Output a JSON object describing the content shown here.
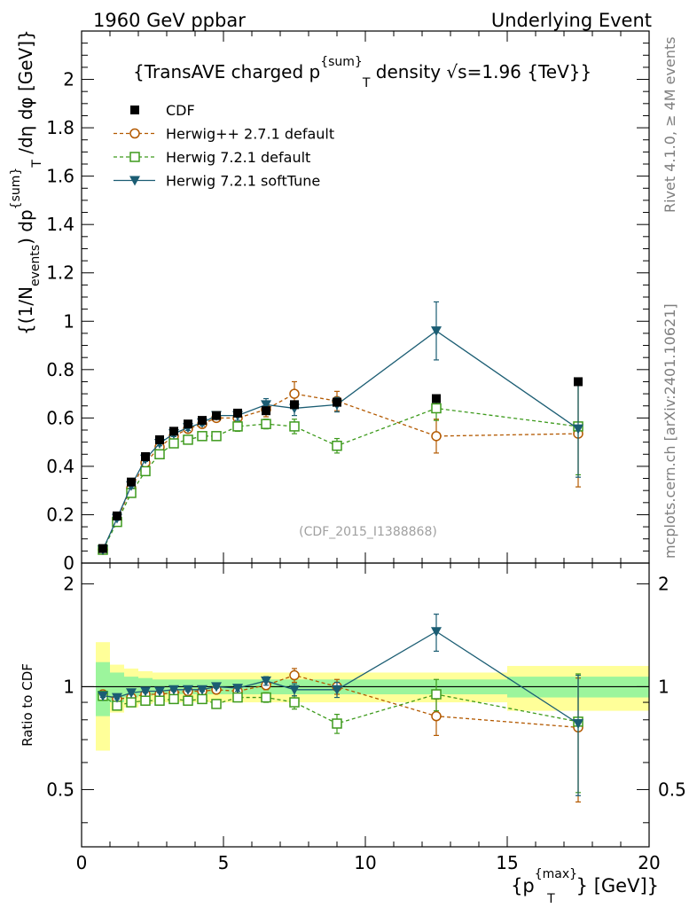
{
  "header": {
    "left": "1960 GeV ppbar",
    "right": "Underlying Event"
  },
  "side_labels": {
    "rivet": "Rivet 4.1.0, ≥ 4M events",
    "mcplots": "mcplots.cern.ch [arXiv:2401.10621]"
  },
  "colors": {
    "cdf": "#000000",
    "herwigpp": "#b35900",
    "herwig_default": "#3d9a1c",
    "herwig_soft": "#1b5d73",
    "band_inner": "#9cf59c",
    "band_outer": "#ffff99"
  },
  "chart_data": [
    {
      "panel": "main",
      "type": "line",
      "title": "{TransAVE charged p_T^{sum} density √s=1.96 {TeV}}",
      "title_parts": {
        "pre": "{TransAVE charged p",
        "sup": "{sum}",
        "sub": "T",
        "post": " density √s=1.96 {TeV}}"
      },
      "ylabel": "{(1/N_events) dp_T^{sum} /dη dφ [GeV]}",
      "ylabel_parts": {
        "a": "{(1/N",
        "b": "events",
        "c": ") dp",
        "d": "{sum}",
        "e": "T",
        "f": " /dη  dφ [GeV]}"
      },
      "xlim": [
        0,
        20
      ],
      "ylim": [
        0,
        2.2
      ],
      "yticks": [
        0,
        0.2,
        0.4,
        0.6,
        0.8,
        1,
        1.2,
        1.4,
        1.6,
        1.8,
        2
      ],
      "ytick_labels": [
        "0",
        "0.2",
        "0.4",
        "0.6",
        "0.8",
        "1",
        "1.2",
        "1.4",
        "1.6",
        "1.8",
        "2"
      ],
      "watermark": "(CDF_2015_I1388868)",
      "legend_position": "top-left",
      "series": [
        {
          "name": "CDF",
          "key": "cdf",
          "style": "data",
          "x": [
            0.75,
            1.25,
            1.75,
            2.25,
            2.75,
            3.25,
            3.75,
            4.25,
            4.75,
            5.5,
            6.5,
            7.5,
            9,
            12.5,
            17.5
          ],
          "y": [
            0.06,
            0.195,
            0.335,
            0.44,
            0.51,
            0.545,
            0.575,
            0.59,
            0.61,
            0.62,
            0.63,
            0.655,
            0.665,
            0.68,
            0.75
          ],
          "err": [
            0,
            0,
            0,
            0,
            0,
            0,
            0,
            0,
            0,
            0,
            0,
            0,
            0,
            0,
            0
          ]
        },
        {
          "name": "Herwig++ 2.7.1 default",
          "key": "herwigpp",
          "style": "circle-dashed",
          "x": [
            0.75,
            1.25,
            1.75,
            2.25,
            2.75,
            3.25,
            3.75,
            4.25,
            4.75,
            5.5,
            6.5,
            7.5,
            9,
            12.5,
            17.5
          ],
          "y": [
            0.055,
            0.18,
            0.31,
            0.415,
            0.48,
            0.525,
            0.555,
            0.575,
            0.6,
            0.6,
            0.635,
            0.7,
            0.67,
            0.525,
            0.535
          ],
          "err": [
            0.005,
            0.008,
            0.01,
            0.01,
            0.012,
            0.012,
            0.012,
            0.015,
            0.015,
            0.02,
            0.03,
            0.05,
            0.04,
            0.07,
            0.22
          ]
        },
        {
          "name": "Herwig 7.2.1 default",
          "key": "herwig_default",
          "style": "square-dashed",
          "x": [
            0.75,
            1.25,
            1.75,
            2.25,
            2.75,
            3.25,
            3.75,
            4.25,
            4.75,
            5.5,
            6.5,
            7.5,
            9,
            12.5,
            17.5
          ],
          "y": [
            0.055,
            0.17,
            0.29,
            0.38,
            0.45,
            0.495,
            0.51,
            0.525,
            0.525,
            0.565,
            0.575,
            0.565,
            0.485,
            0.64,
            0.565
          ],
          "err": [
            0.005,
            0.008,
            0.01,
            0.01,
            0.01,
            0.012,
            0.012,
            0.012,
            0.012,
            0.02,
            0.02,
            0.03,
            0.03,
            0.05,
            0.2
          ]
        },
        {
          "name": "Herwig 7.2.1 softTune",
          "key": "herwig_soft",
          "style": "triangle-solid",
          "x": [
            0.75,
            1.25,
            1.75,
            2.25,
            2.75,
            3.25,
            3.75,
            4.25,
            4.75,
            5.5,
            6.5,
            7.5,
            9,
            12.5,
            17.5
          ],
          "y": [
            0.055,
            0.185,
            0.32,
            0.43,
            0.495,
            0.535,
            0.56,
            0.58,
            0.61,
            0.61,
            0.655,
            0.64,
            0.655,
            0.96,
            0.555
          ],
          "err": [
            0.005,
            0.008,
            0.01,
            0.01,
            0.01,
            0.012,
            0.012,
            0.012,
            0.012,
            0.02,
            0.025,
            0.03,
            0.03,
            0.12,
            0.2
          ]
        }
      ]
    },
    {
      "panel": "ratio",
      "type": "line",
      "ylabel": "Ratio to CDF",
      "xlabel": "{p_T^{max}} [GeV]}",
      "xlabel_parts": {
        "a": "{p",
        "b": "{max}",
        "c": "T",
        "d": "} [GeV]}"
      },
      "xlim": [
        0,
        20
      ],
      "ylim": [
        0.34,
        2.3
      ],
      "yscale": "log",
      "yticks": [
        0.5,
        1,
        2
      ],
      "ytick_labels": [
        "0.5",
        "1",
        "2"
      ],
      "xticks": [
        0,
        5,
        10,
        15,
        20
      ],
      "xtick_labels": [
        "0",
        "5",
        "10",
        "15",
        "20"
      ],
      "reference": 1,
      "bands": {
        "edges": [
          0.5,
          1,
          1.5,
          2,
          2.5,
          3,
          3.5,
          4,
          4.5,
          5,
          6,
          7,
          8,
          10,
          15,
          20
        ],
        "inner": [
          0.18,
          0.1,
          0.07,
          0.06,
          0.05,
          0.05,
          0.05,
          0.05,
          0.05,
          0.05,
          0.05,
          0.05,
          0.05,
          0.05,
          0.07
        ],
        "outer": [
          0.35,
          0.16,
          0.13,
          0.11,
          0.1,
          0.1,
          0.1,
          0.1,
          0.1,
          0.1,
          0.1,
          0.1,
          0.1,
          0.1,
          0.15
        ]
      },
      "series": [
        {
          "name": "Herwig++ 2.7.1 default",
          "key": "herwigpp",
          "style": "circle-dashed",
          "x": [
            0.75,
            1.25,
            1.75,
            2.25,
            2.75,
            3.25,
            3.75,
            4.25,
            4.75,
            5.5,
            6.5,
            7.5,
            9,
            12.5,
            17.5
          ],
          "y": [
            0.95,
            0.92,
            0.93,
            0.95,
            0.95,
            0.96,
            0.97,
            0.97,
            0.98,
            0.97,
            1.01,
            1.08,
            1.0,
            0.82,
            0.76
          ],
          "err": [
            0.01,
            0.01,
            0.01,
            0.01,
            0.01,
            0.01,
            0.01,
            0.01,
            0.01,
            0.02,
            0.03,
            0.05,
            0.05,
            0.1,
            0.3
          ]
        },
        {
          "name": "Herwig 7.2.1 default",
          "key": "herwig_default",
          "style": "square-dashed",
          "x": [
            0.75,
            1.25,
            1.75,
            2.25,
            2.75,
            3.25,
            3.75,
            4.25,
            4.75,
            5.5,
            6.5,
            7.5,
            9,
            12.5,
            17.5
          ],
          "y": [
            0.94,
            0.88,
            0.9,
            0.91,
            0.91,
            0.92,
            0.91,
            0.92,
            0.89,
            0.93,
            0.93,
            0.9,
            0.78,
            0.95,
            0.79
          ],
          "err": [
            0.01,
            0.01,
            0.01,
            0.01,
            0.01,
            0.01,
            0.01,
            0.01,
            0.01,
            0.02,
            0.03,
            0.04,
            0.05,
            0.1,
            0.3
          ]
        },
        {
          "name": "Herwig 7.2.1 softTune",
          "key": "herwig_soft",
          "style": "triangle-solid",
          "x": [
            0.75,
            1.25,
            1.75,
            2.25,
            2.75,
            3.25,
            3.75,
            4.25,
            4.75,
            5.5,
            6.5,
            7.5,
            9,
            12.5,
            17.5
          ],
          "y": [
            0.94,
            0.93,
            0.96,
            0.97,
            0.97,
            0.98,
            0.98,
            0.98,
            1.0,
            0.99,
            1.04,
            0.98,
            0.98,
            1.45,
            0.78
          ],
          "err": [
            0.01,
            0.01,
            0.01,
            0.01,
            0.01,
            0.01,
            0.01,
            0.01,
            0.01,
            0.02,
            0.03,
            0.04,
            0.05,
            0.18,
            0.3
          ]
        }
      ]
    }
  ]
}
